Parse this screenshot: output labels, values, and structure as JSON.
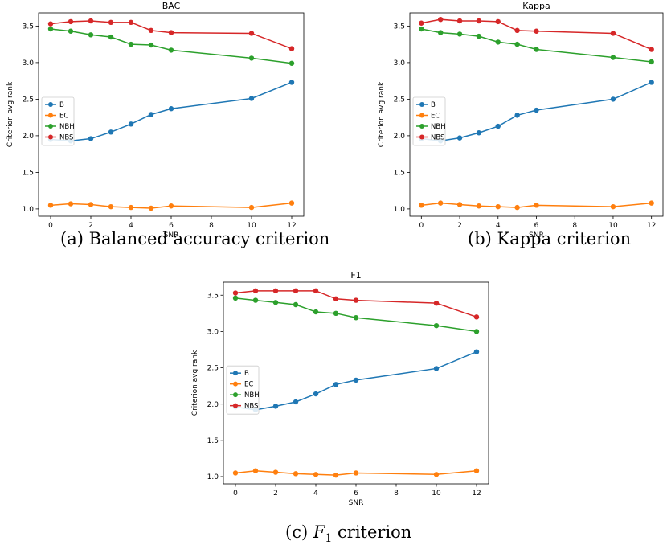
{
  "chart_data": [
    {
      "type": "line",
      "title": "BAC",
      "xlabel": "SNR",
      "ylabel": "Criterion avg rank",
      "x": [
        0,
        1,
        2,
        3,
        4,
        5,
        6,
        10,
        12
      ],
      "xticks": [
        "0",
        "2",
        "4",
        "6",
        "8",
        "10",
        "12"
      ],
      "yticks": [
        "1.0",
        "1.5",
        "2.0",
        "2.5",
        "3.0",
        "3.5"
      ],
      "xlim": [
        -0.6,
        12.6
      ],
      "ylim": [
        0.9,
        3.68
      ],
      "grid": false,
      "legend_position": "center-left",
      "series": [
        {
          "name": "B",
          "color": "#1f77b4",
          "values": [
            1.95,
            1.93,
            1.96,
            2.05,
            2.16,
            2.29,
            2.37,
            2.51,
            2.73
          ]
        },
        {
          "name": "EC",
          "color": "#ff7f0e",
          "values": [
            1.05,
            1.07,
            1.06,
            1.03,
            1.02,
            1.01,
            1.04,
            1.02,
            1.08
          ]
        },
        {
          "name": "NBH",
          "color": "#2ca02c",
          "values": [
            3.46,
            3.43,
            3.38,
            3.35,
            3.25,
            3.24,
            3.17,
            3.06,
            2.99
          ]
        },
        {
          "name": "NBS",
          "color": "#d62728",
          "values": [
            3.53,
            3.56,
            3.57,
            3.55,
            3.55,
            3.44,
            3.41,
            3.4,
            3.19
          ]
        }
      ]
    },
    {
      "type": "line",
      "title": "Kappa",
      "xlabel": "SNR",
      "ylabel": "Criterion avg rank",
      "x": [
        0,
        1,
        2,
        3,
        4,
        5,
        6,
        10,
        12
      ],
      "xticks": [
        "0",
        "2",
        "4",
        "6",
        "8",
        "10",
        "12"
      ],
      "yticks": [
        "1.0",
        "1.5",
        "2.0",
        "2.5",
        "3.0",
        "3.5"
      ],
      "xlim": [
        -0.6,
        12.6
      ],
      "ylim": [
        0.9,
        3.68
      ],
      "grid": false,
      "legend_position": "center-left",
      "series": [
        {
          "name": "B",
          "color": "#1f77b4",
          "values": [
            1.96,
            1.93,
            1.97,
            2.04,
            2.13,
            2.28,
            2.35,
            2.5,
            2.73
          ]
        },
        {
          "name": "EC",
          "color": "#ff7f0e",
          "values": [
            1.05,
            1.08,
            1.06,
            1.04,
            1.03,
            1.02,
            1.05,
            1.03,
            1.08
          ]
        },
        {
          "name": "NBH",
          "color": "#2ca02c",
          "values": [
            3.46,
            3.41,
            3.39,
            3.36,
            3.28,
            3.25,
            3.18,
            3.07,
            3.01
          ]
        },
        {
          "name": "NBS",
          "color": "#d62728",
          "values": [
            3.54,
            3.59,
            3.57,
            3.57,
            3.56,
            3.44,
            3.43,
            3.4,
            3.18
          ]
        }
      ]
    },
    {
      "type": "line",
      "title": "F1",
      "xlabel": "SNR",
      "ylabel": "Criterion avg rank",
      "x": [
        0,
        1,
        2,
        3,
        4,
        5,
        6,
        10,
        12
      ],
      "xticks": [
        "0",
        "2",
        "4",
        "6",
        "8",
        "10",
        "12"
      ],
      "yticks": [
        "1.0",
        "1.5",
        "2.0",
        "2.5",
        "3.0",
        "3.5"
      ],
      "xlim": [
        -0.6,
        12.6
      ],
      "ylim": [
        0.9,
        3.68
      ],
      "grid": false,
      "legend_position": "center-left",
      "series": [
        {
          "name": "B",
          "color": "#1f77b4",
          "values": [
            1.96,
            1.92,
            1.97,
            2.03,
            2.14,
            2.27,
            2.33,
            2.49,
            2.72
          ]
        },
        {
          "name": "EC",
          "color": "#ff7f0e",
          "values": [
            1.05,
            1.08,
            1.06,
            1.04,
            1.03,
            1.02,
            1.05,
            1.03,
            1.08
          ]
        },
        {
          "name": "NBH",
          "color": "#2ca02c",
          "values": [
            3.46,
            3.43,
            3.4,
            3.37,
            3.27,
            3.25,
            3.19,
            3.08,
            3.0
          ]
        },
        {
          "name": "NBS",
          "color": "#d62728",
          "values": [
            3.53,
            3.56,
            3.56,
            3.56,
            3.56,
            3.45,
            3.43,
            3.39,
            3.2
          ]
        }
      ]
    }
  ],
  "captions": {
    "a": "(a) Balanced accuracy criterion",
    "b": "(b) Kappa criterion",
    "c_prefix": "(c)",
    "c_var": "F",
    "c_sub": "1",
    "c_suffix": "criterion"
  }
}
